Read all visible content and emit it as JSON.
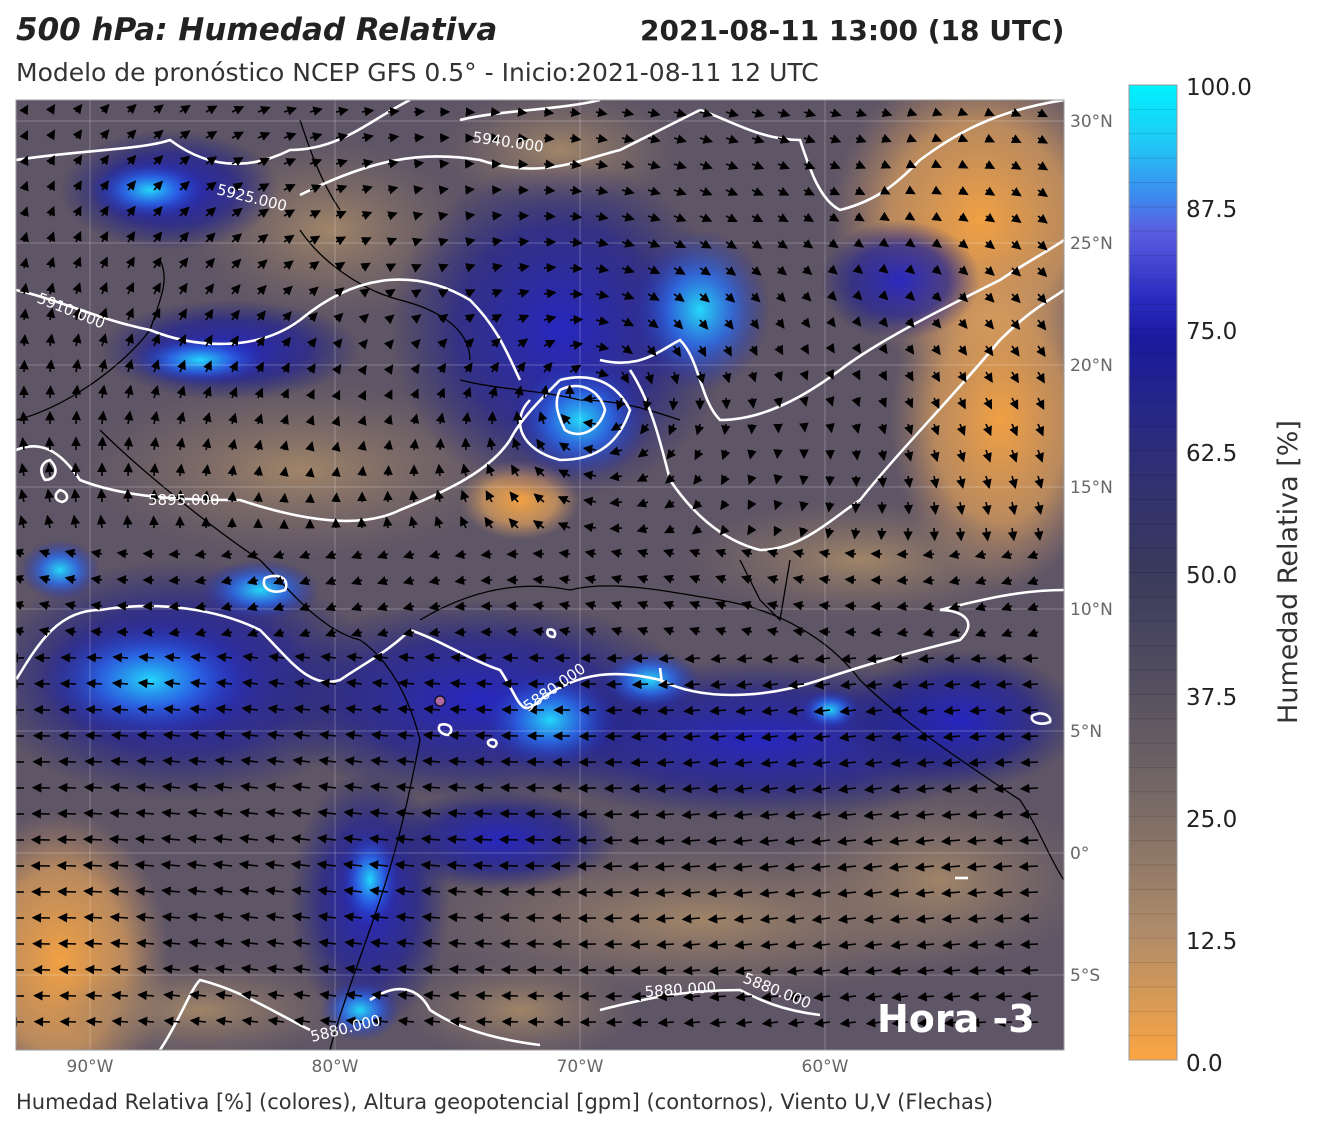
{
  "header": {
    "title": "500 hPa: Humedad Relativa",
    "datetime": "2021-08-11 13:00 (18 UTC)",
    "subtitle": "Modelo de pronóstico NCEP GFS 0.5° - Inicio:2021-08-11 12 UTC"
  },
  "footer": {
    "caption": "Humedad Relativa [%] (colores), Altura geopotencial [gpm] (contornos), Viento U,V (Flechas)"
  },
  "map": {
    "lon_labels": [
      "90°W",
      "80°W",
      "70°W",
      "60°W"
    ],
    "lat_labels": [
      "30°N",
      "25°N",
      "20°N",
      "15°N",
      "10°N",
      "5°N",
      "0°",
      "5°S"
    ],
    "contour_labels": [
      "5940.000",
      "5925.000",
      "5910.000",
      "5895.000",
      "5880.000",
      "5880.000",
      "5880.000",
      "5880.000"
    ],
    "hour_badge": "Hora -3"
  },
  "colorbar": {
    "label": "Humedad Relativa [%]",
    "ticks": [
      "100.0",
      "87.5",
      "75.0",
      "62.5",
      "50.0",
      "37.5",
      "25.0",
      "12.5",
      "0.0"
    ],
    "colors": {
      "low": "#f9a441",
      "mid_low": "#9c8366",
      "mid": "#3b3b5e",
      "mid_high": "#1f1f9e",
      "high": "#00e5ff"
    }
  }
}
